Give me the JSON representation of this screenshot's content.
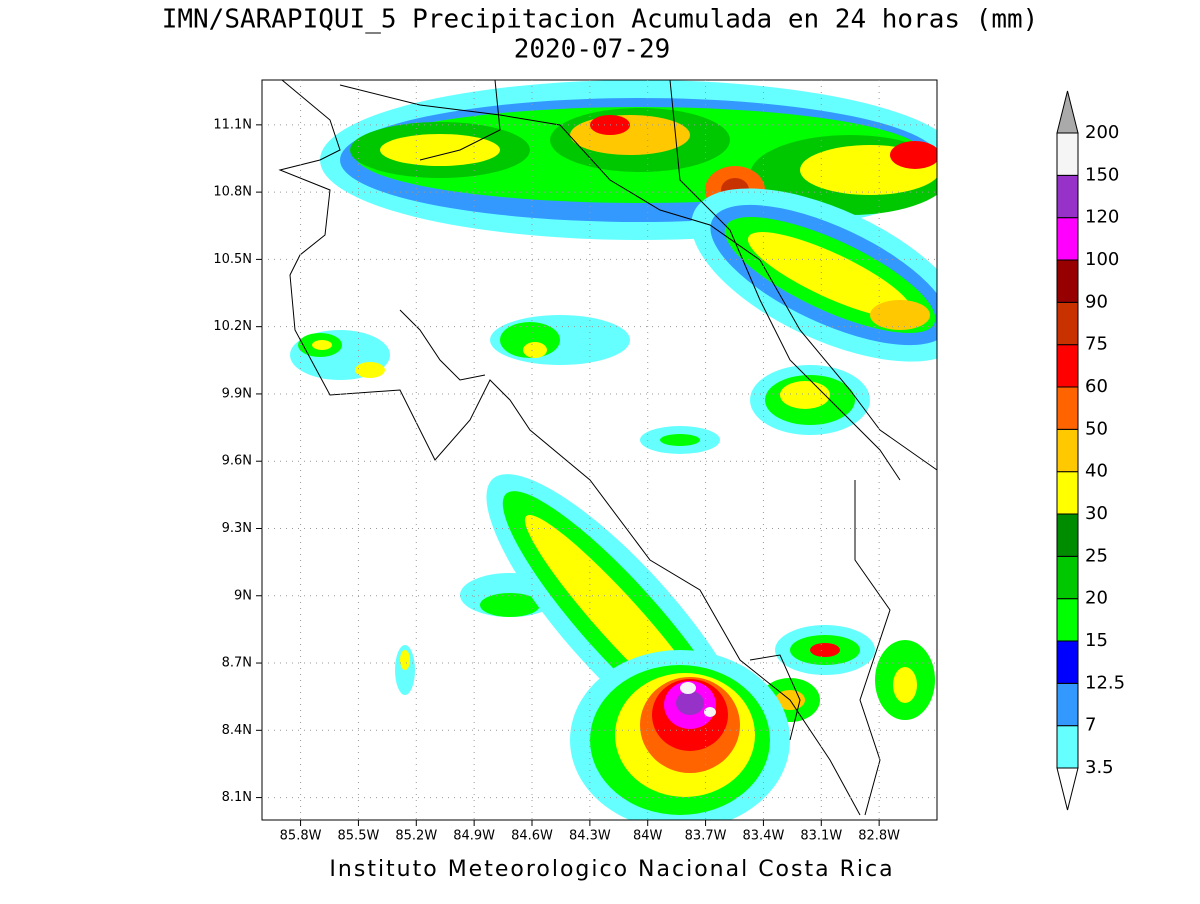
{
  "map": {
    "title": "IMN/SARAPIQUI_5 Precipitacion Acumulada en 24 horas (mm)",
    "subtitle": "2020-07-29",
    "xlim": [
      -86.0,
      -82.5
    ],
    "ylim": [
      8.0,
      11.3
    ],
    "grid": true,
    "lon_ticks": [
      {
        "value": -85.8,
        "label": "85.8W"
      },
      {
        "value": -85.5,
        "label": "85.5W"
      },
      {
        "value": -85.2,
        "label": "85.2W"
      },
      {
        "value": -84.9,
        "label": "84.9W"
      },
      {
        "value": -84.6,
        "label": "84.6W"
      },
      {
        "value": -84.3,
        "label": "84.3W"
      },
      {
        "value": -84.0,
        "label": "84W"
      },
      {
        "value": -83.7,
        "label": "83.7W"
      },
      {
        "value": -83.4,
        "label": "83.4W"
      },
      {
        "value": -83.1,
        "label": "83.1W"
      },
      {
        "value": -82.8,
        "label": "82.8W"
      }
    ],
    "lat_ticks": [
      {
        "value": 8.1,
        "label": "8.1N"
      },
      {
        "value": 8.4,
        "label": "8.4N"
      },
      {
        "value": 8.7,
        "label": "8.7N"
      },
      {
        "value": 9.0,
        "label": "9N"
      },
      {
        "value": 9.3,
        "label": "9.3N"
      },
      {
        "value": 9.6,
        "label": "9.6N"
      },
      {
        "value": 9.9,
        "label": "9.9N"
      },
      {
        "value": 10.2,
        "label": "10.2N"
      },
      {
        "value": 10.5,
        "label": "10.5N"
      },
      {
        "value": 10.8,
        "label": "10.8N"
      },
      {
        "value": 11.1,
        "label": "11.1N"
      }
    ]
  },
  "colorbar": {
    "levels": [
      3.5,
      7,
      12.5,
      15,
      20,
      25,
      30,
      40,
      50,
      60,
      75,
      90,
      100,
      120,
      150,
      200
    ],
    "colors": [
      "#ffffff",
      "#66ffff",
      "#3399ff",
      "#0000ff",
      "#00ff00",
      "#00c800",
      "#008c00",
      "#ffff00",
      "#ffc800",
      "#ff6400",
      "#ff0000",
      "#c83200",
      "#960000",
      "#ff00ff",
      "#9632c8",
      "#f5f5f5",
      "#aaaaaa"
    ]
  },
  "footer": "Instituto Meteorologico Nacional Costa Rica"
}
